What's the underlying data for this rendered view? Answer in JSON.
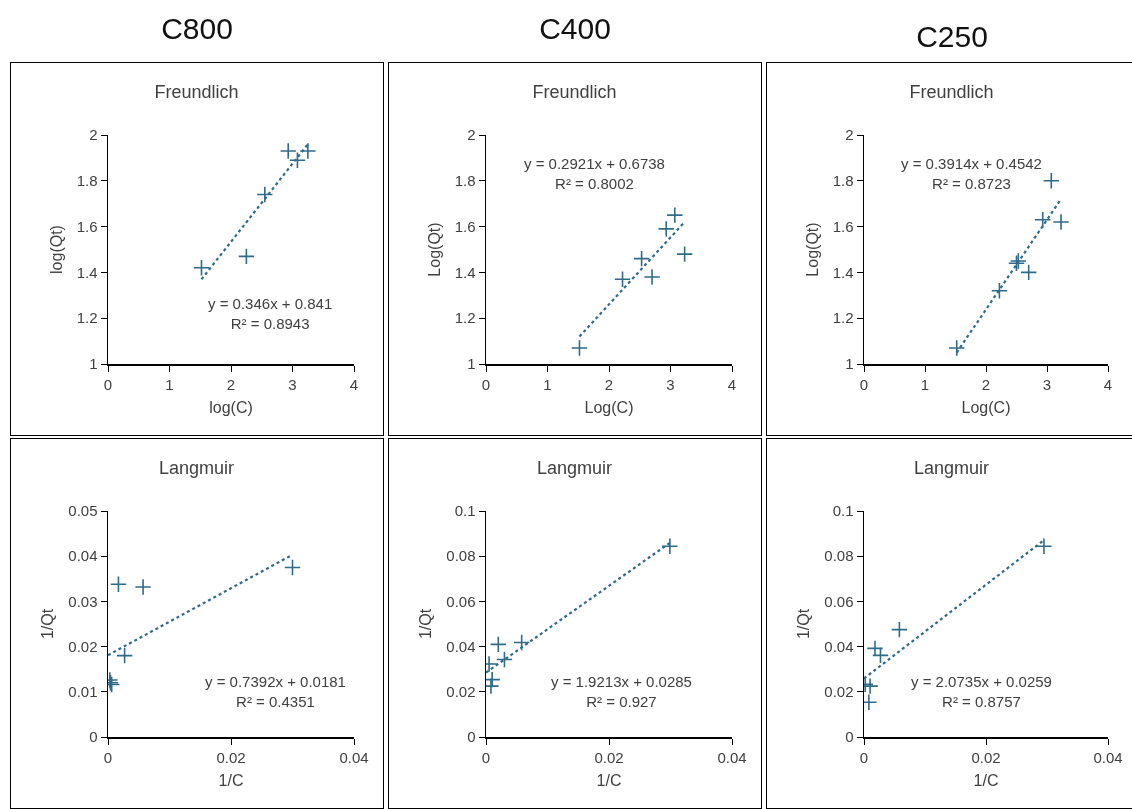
{
  "chart_data": [
    {
      "type": "scatter",
      "subtitle": "C800",
      "title": "Freundlich",
      "xlabel": "log(C)",
      "ylabel": "log(Qt)",
      "xlim": [
        0,
        4
      ],
      "xticks": [
        0,
        1,
        2,
        3,
        4
      ],
      "ylim": [
        1,
        2
      ],
      "yticks": [
        1,
        1.2,
        1.4,
        1.6,
        1.8,
        2
      ],
      "grid": false,
      "series": [
        {
          "marker": "cross",
          "color": "#2e6b8a",
          "x": [
            1.52,
            2.25,
            2.55,
            2.93,
            3.08,
            3.25
          ],
          "values": [
            1.42,
            1.47,
            1.74,
            1.93,
            1.89,
            1.93
          ]
        },
        {
          "type": "line",
          "line_style": "dotted",
          "color": "#2e6b8a",
          "x": [
            1.52,
            3.25
          ],
          "values": [
            1.37,
            1.96
          ]
        }
      ],
      "annotations": [
        "y = 0.346x + 0.841\nR² = 0.8943"
      ]
    },
    {
      "type": "scatter",
      "subtitle": "C400",
      "title": "Freundlich",
      "xlabel": "Log(C)",
      "ylabel": "Log(Qt)",
      "xlim": [
        0,
        4
      ],
      "xticks": [
        0,
        1,
        2,
        3,
        4
      ],
      "ylim": [
        1,
        2
      ],
      "yticks": [
        1,
        1.2,
        1.4,
        1.6,
        1.8,
        2
      ],
      "grid": false,
      "series": [
        {
          "marker": "cross",
          "color": "#2e6b8a",
          "x": [
            1.52,
            2.22,
            2.53,
            2.7,
            2.93,
            3.07,
            3.23
          ],
          "values": [
            1.07,
            1.37,
            1.46,
            1.38,
            1.59,
            1.65,
            1.48
          ]
        },
        {
          "type": "line",
          "line_style": "dotted",
          "color": "#2e6b8a",
          "x": [
            1.52,
            3.23
          ],
          "values": [
            1.12,
            1.62
          ]
        }
      ],
      "annotations": [
        "y = 0.2921x + 0.6738\nR² = 0.8002"
      ]
    },
    {
      "type": "scatter",
      "subtitle": "C250",
      "title": "Freundlich",
      "xlabel": "Log(C)",
      "ylabel": "Log(Qt)",
      "xlim": [
        0,
        4
      ],
      "xticks": [
        0,
        1,
        2,
        3,
        4
      ],
      "ylim": [
        1,
        2
      ],
      "yticks": [
        1,
        1.2,
        1.4,
        1.6,
        1.8,
        2
      ],
      "grid": false,
      "series": [
        {
          "marker": "cross",
          "color": "#2e6b8a",
          "x": [
            1.52,
            2.22,
            2.5,
            2.53,
            2.7,
            2.93,
            3.07,
            3.23
          ],
          "values": [
            1.07,
            1.32,
            1.44,
            1.45,
            1.4,
            1.63,
            1.8,
            1.62
          ]
        },
        {
          "type": "line",
          "line_style": "dotted",
          "color": "#2e6b8a",
          "x": [
            1.52,
            3.23
          ],
          "values": [
            1.05,
            1.72
          ]
        }
      ],
      "annotations": [
        "y = 0.3914x + 0.4542\nR² = 0.8723"
      ]
    },
    {
      "type": "scatter",
      "title": "Langmuir",
      "xlabel": "1/C",
      "ylabel": "1/Qt",
      "xlim": [
        0,
        0.04
      ],
      "xticks": [
        0,
        0.02,
        0.04
      ],
      "ylim": [
        0,
        0.05
      ],
      "yticks": [
        0,
        0.01,
        0.02,
        0.03,
        0.04,
        0.05
      ],
      "grid": false,
      "series": [
        {
          "marker": "cross",
          "color": "#2e6b8a",
          "x": [
            0.0017,
            0.0057,
            0.0027,
            0.0004,
            0.0006,
            0.0003,
            0.03
          ],
          "values": [
            0.0338,
            0.0332,
            0.018,
            0.012,
            0.0116,
            0.0126,
            0.0375
          ]
        },
        {
          "type": "line",
          "line_style": "dotted",
          "color": "#2e6b8a",
          "x": [
            0,
            0.0297
          ],
          "values": [
            0.0181,
            0.0401
          ]
        }
      ],
      "annotations": [
        "y = 0.7392x + 0.0181\nR² = 0.4351"
      ]
    },
    {
      "type": "scatter",
      "title": "Langmuir",
      "xlabel": "1/C",
      "ylabel": "1/Qt",
      "xlim": [
        0,
        0.04
      ],
      "xticks": [
        0,
        0.02,
        0.04
      ],
      "ylim": [
        0,
        0.1
      ],
      "yticks": [
        0,
        0.02,
        0.04,
        0.06,
        0.08,
        0.1
      ],
      "grid": false,
      "series": [
        {
          "marker": "cross",
          "color": "#2e6b8a",
          "x": [
            0.0005,
            0.001,
            0.0008,
            0.002,
            0.003,
            0.0058,
            0.0299
          ],
          "values": [
            0.0323,
            0.0254,
            0.0225,
            0.041,
            0.0343,
            0.0418,
            0.0844
          ]
        },
        {
          "type": "line",
          "line_style": "dotted",
          "color": "#2e6b8a",
          "x": [
            0,
            0.0299
          ],
          "values": [
            0.0285,
            0.0859
          ]
        }
      ],
      "annotations": [
        "y = 1.9213x + 0.0285\nR² = 0.927"
      ]
    },
    {
      "type": "scatter",
      "title": "Langmuir",
      "xlabel": "1/C",
      "ylabel": "1/Qt",
      "xlim": [
        0,
        0.04
      ],
      "xticks": [
        0,
        0.02,
        0.04
      ],
      "ylim": [
        0,
        0.1
      ],
      "yticks": [
        0,
        0.02,
        0.04,
        0.06,
        0.08,
        0.1
      ],
      "grid": false,
      "series": [
        {
          "marker": "cross",
          "color": "#2e6b8a",
          "x": [
            0.0002,
            0.001,
            0.0008,
            0.0018,
            0.0027,
            0.0058,
            0.0295
          ],
          "values": [
            0.0233,
            0.0225,
            0.0154,
            0.0392,
            0.0361,
            0.0475,
            0.0844
          ]
        },
        {
          "type": "line",
          "line_style": "dotted",
          "color": "#2e6b8a",
          "x": [
            0,
            0.0295
          ],
          "values": [
            0.0259,
            0.0871
          ]
        }
      ],
      "annotations": [
        "y = 2.0735x + 0.0259\nR² = 0.8757"
      ]
    }
  ]
}
